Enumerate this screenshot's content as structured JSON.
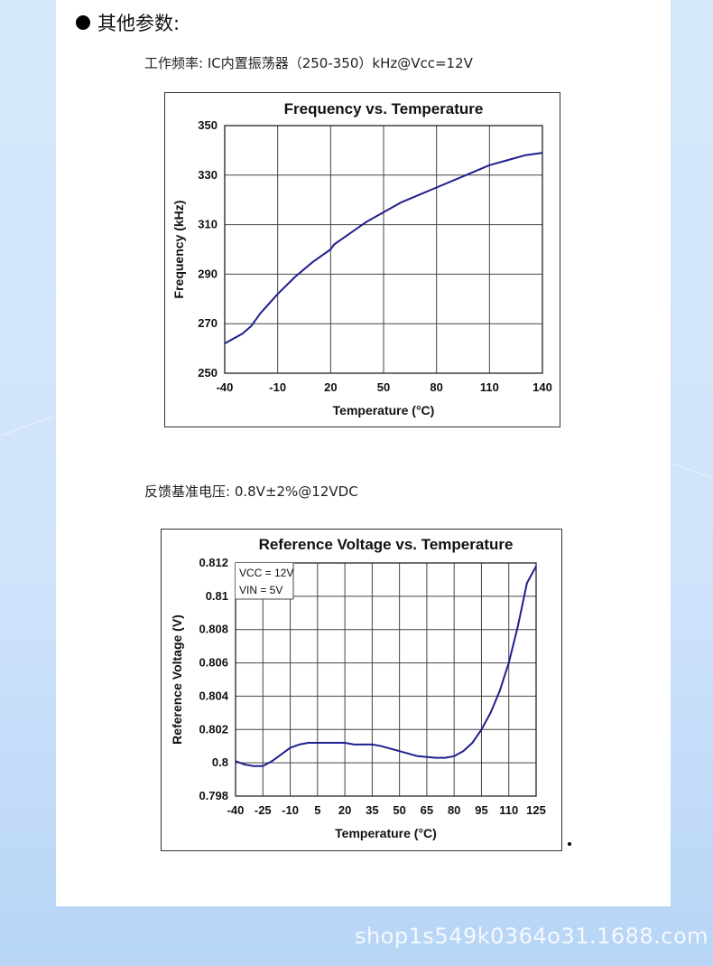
{
  "section": {
    "title": "其他参数:",
    "line1": "工作频率: IC内置振荡器（250-350）kHz@Vcc=12V",
    "line2": "反馈基准电压: 0.8V±2%@12VDC"
  },
  "watermark": "shop1s549k0364o31.1688.com",
  "colors": {
    "line": "#1f1f8f",
    "grid": "#444444",
    "frame": "#333333"
  },
  "chart_data": [
    {
      "type": "line",
      "title": "Frequency vs. Temperature",
      "xlabel": "Temperature (°C)",
      "ylabel": "Frequency (kHz)",
      "xlim": [
        -40,
        140
      ],
      "ylim": [
        250,
        350
      ],
      "xticks": [
        -40,
        -10,
        20,
        50,
        80,
        110,
        140
      ],
      "yticks": [
        250,
        270,
        290,
        310,
        330,
        350
      ],
      "grid": true,
      "series": [
        {
          "x": [
            -40,
            -30,
            -25,
            -20,
            -10,
            0,
            10,
            20,
            22,
            30,
            40,
            50,
            60,
            70,
            80,
            90,
            100,
            110,
            120,
            130,
            140
          ],
          "y": [
            262,
            266,
            269,
            274,
            282,
            289,
            295,
            300,
            302,
            306,
            311,
            315,
            319,
            322,
            325,
            328,
            331,
            334,
            336,
            338,
            339
          ]
        }
      ]
    },
    {
      "type": "line",
      "title": "Reference Voltage vs. Temperature",
      "xlabel": "Temperature (°C)",
      "ylabel": "Reference Voltage (V)",
      "xlim": [
        -40,
        125
      ],
      "ylim": [
        0.798,
        0.812
      ],
      "xticks": [
        -40,
        -25,
        -10,
        5,
        20,
        35,
        50,
        65,
        80,
        95,
        110,
        125
      ],
      "yticks": [
        0.798,
        0.8,
        0.802,
        0.804,
        0.806,
        0.808,
        0.81,
        0.812
      ],
      "ytick_labels": [
        "0.798",
        "0.8",
        "0.802",
        "0.804",
        "0.806",
        "0.808",
        "0.81",
        "0.812"
      ],
      "grid": true,
      "annotations": [
        "VCC = 12V",
        "VIN = 5V"
      ],
      "series": [
        {
          "x": [
            -40,
            -35,
            -30,
            -25,
            -20,
            -15,
            -10,
            -5,
            0,
            5,
            10,
            15,
            20,
            25,
            30,
            35,
            40,
            50,
            60,
            70,
            75,
            80,
            85,
            90,
            95,
            100,
            105,
            110,
            115,
            120,
            125
          ],
          "y": [
            0.8001,
            0.7999,
            0.7998,
            0.7998,
            0.8001,
            0.8005,
            0.8009,
            0.8011,
            0.8012,
            0.8012,
            0.8012,
            0.8012,
            0.8012,
            0.8011,
            0.8011,
            0.8011,
            0.801,
            0.8007,
            0.8004,
            0.8003,
            0.8003,
            0.8004,
            0.8007,
            0.8012,
            0.802,
            0.803,
            0.8043,
            0.806,
            0.8082,
            0.8108,
            0.8118
          ]
        }
      ]
    }
  ]
}
